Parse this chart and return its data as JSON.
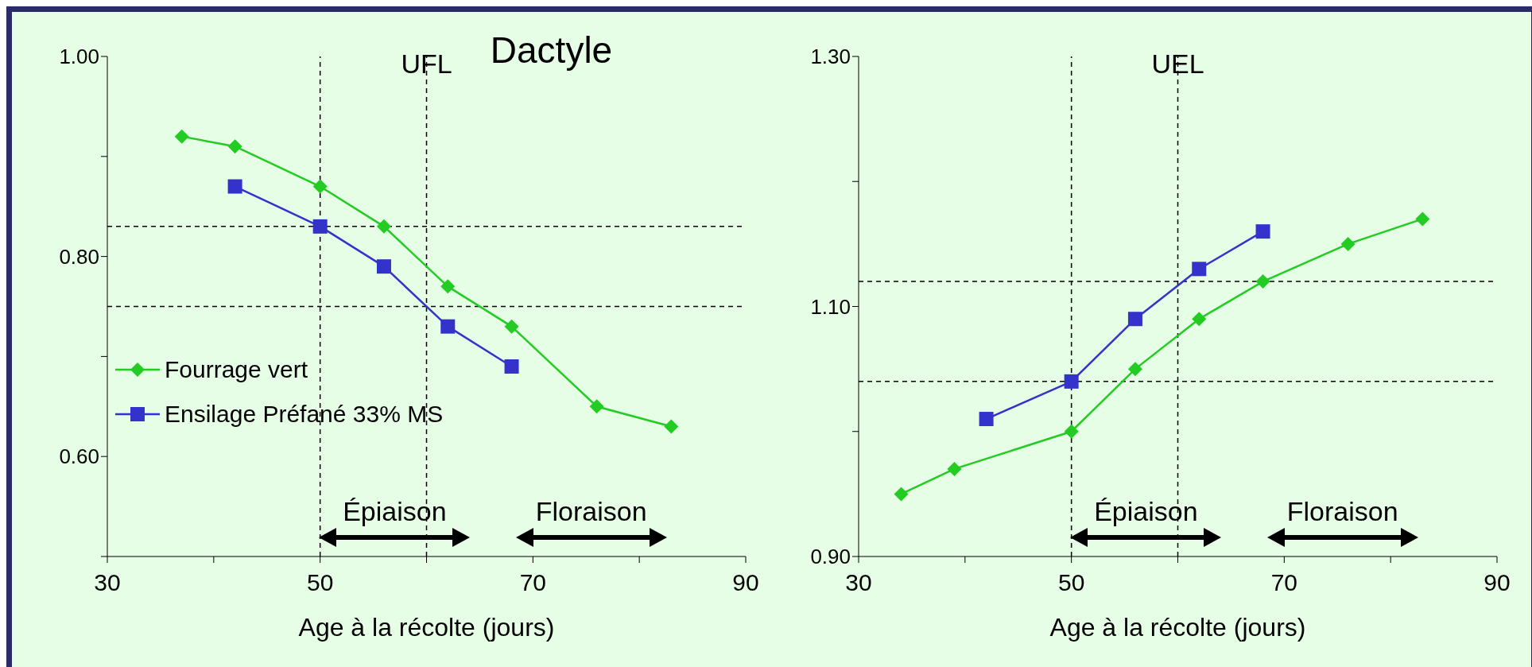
{
  "chart_data": [
    {
      "type": "line",
      "title": "Dactyle",
      "subtitle": "UFL",
      "xlabel": "Age à la récolte (jours)",
      "legend": "left",
      "grid": false,
      "xlim": [
        30,
        90
      ],
      "xticks": [
        30,
        {
          "value": 40,
          "label": null
        },
        50,
        {
          "value": 60,
          "label": null
        },
        70,
        {
          "value": 80,
          "label": null
        },
        90
      ],
      "ylim": [
        0.5,
        1.0
      ],
      "yticks": [
        {
          "value": 0.5,
          "label": null
        },
        {
          "value": 0.6,
          "label": "0.60"
        },
        {
          "value": 0.7,
          "label": null
        },
        {
          "value": 0.8,
          "label": "0.80"
        },
        {
          "value": 0.9,
          "label": null
        },
        {
          "value": 1.0,
          "label": "1.00"
        }
      ],
      "series": [
        {
          "name": "Fourrage vert",
          "color": "#22cc22",
          "marker": "diamond",
          "x": [
            37,
            42,
            50,
            56,
            62,
            68,
            76,
            83
          ],
          "values": [
            0.92,
            0.91,
            0.87,
            0.83,
            0.77,
            0.73,
            0.65,
            0.63
          ]
        },
        {
          "name": "Ensilage Préfané 33% MS",
          "color": "#3333cc",
          "marker": "square",
          "x": [
            42,
            50,
            56,
            62,
            68
          ],
          "values": [
            0.87,
            0.83,
            0.79,
            0.73,
            0.69
          ]
        }
      ],
      "ref_lines": [
        {
          "axis": "y",
          "value": 0.83,
          "line_style": "dashed",
          "color": "#000000"
        },
        {
          "axis": "y",
          "value": 0.75,
          "line_style": "dashed",
          "color": "#000000"
        },
        {
          "axis": "x",
          "value": 50,
          "line_style": "dashed",
          "color": "#000000"
        },
        {
          "axis": "x",
          "value": 60,
          "line_style": "dashed",
          "color": "#000000"
        }
      ],
      "annotations": [
        "Épiaison",
        "Floraison"
      ]
    },
    {
      "type": "line",
      "subtitle": "UEL",
      "xlabel": "Age à la récolte (jours)",
      "legend": false,
      "grid": false,
      "xlim": [
        30,
        90
      ],
      "xticks": [
        30,
        {
          "value": 40,
          "label": null
        },
        50,
        {
          "value": 60,
          "label": null
        },
        70,
        {
          "value": 80,
          "label": null
        },
        90
      ],
      "ylim": [
        0.9,
        1.3
      ],
      "yticks": [
        {
          "value": 0.9,
          "label": "0.90"
        },
        {
          "value": 1.0,
          "label": null
        },
        {
          "value": 1.1,
          "label": "1.10"
        },
        {
          "value": 1.2,
          "label": null
        },
        {
          "value": 1.3,
          "label": "1.30"
        }
      ],
      "series": [
        {
          "color": "#22cc22",
          "marker": "diamond",
          "x": [
            34,
            39,
            50,
            56,
            62,
            68,
            76,
            83
          ],
          "values": [
            0.95,
            0.97,
            1.0,
            1.05,
            1.09,
            1.12,
            1.15,
            1.17
          ]
        },
        {
          "color": "#3333cc",
          "marker": "square",
          "x": [
            42,
            50,
            56,
            62,
            68
          ],
          "values": [
            1.01,
            1.04,
            1.09,
            1.13,
            1.16
          ]
        }
      ],
      "ref_lines": [
        {
          "axis": "y",
          "value": 1.12,
          "line_style": "dashed",
          "color": "#000000"
        },
        {
          "axis": "y",
          "value": 1.04,
          "line_style": "dashed",
          "color": "#000000"
        },
        {
          "axis": "x",
          "value": 50,
          "line_style": "dashed",
          "color": "#000000"
        },
        {
          "axis": "x",
          "value": 60,
          "line_style": "dashed",
          "color": "#000000"
        }
      ],
      "annotations": [
        "Épiaison",
        "Floraison"
      ]
    }
  ]
}
